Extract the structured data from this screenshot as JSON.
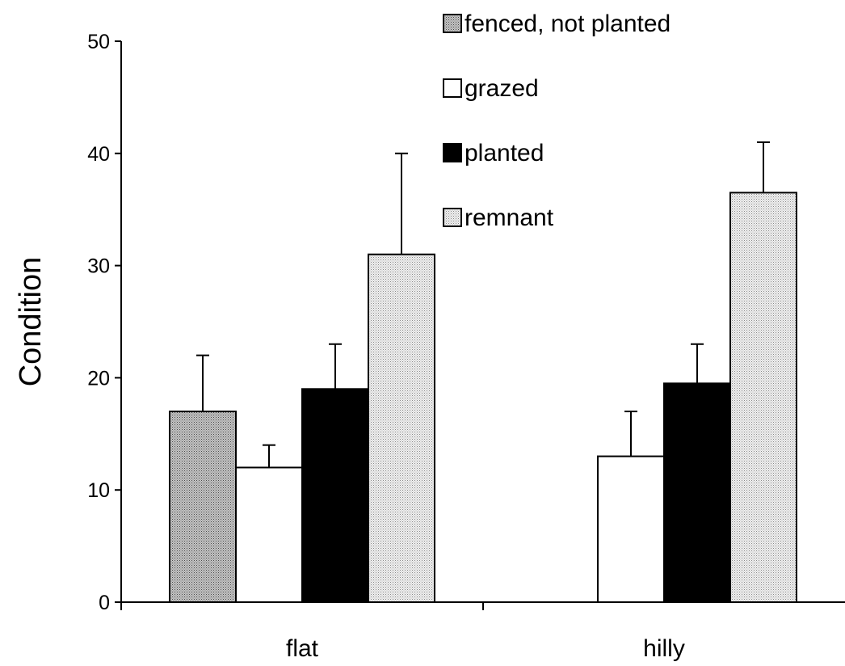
{
  "chart_data": {
    "type": "bar",
    "categories": [
      "flat",
      "hilly"
    ],
    "series": [
      {
        "name": "fenced, not planted",
        "values": [
          17,
          null
        ],
        "errors": [
          5,
          null
        ],
        "pattern": "dense-dots"
      },
      {
        "name": "grazed",
        "values": [
          12,
          13
        ],
        "errors": [
          2,
          4
        ],
        "pattern": "white"
      },
      {
        "name": "planted",
        "values": [
          19,
          19.5
        ],
        "errors": [
          4,
          3.5
        ],
        "pattern": "black"
      },
      {
        "name": "remnant",
        "values": [
          31,
          36.5
        ],
        "errors": [
          9,
          4.5
        ],
        "pattern": "light-dots"
      }
    ],
    "title": "",
    "xlabel": "",
    "ylabel": "Condition",
    "ylim": [
      0,
      50
    ],
    "yticks": [
      0,
      10,
      20,
      30,
      40,
      50
    ],
    "error_bars": "upper",
    "grid": false,
    "legend_position": "top-right"
  }
}
